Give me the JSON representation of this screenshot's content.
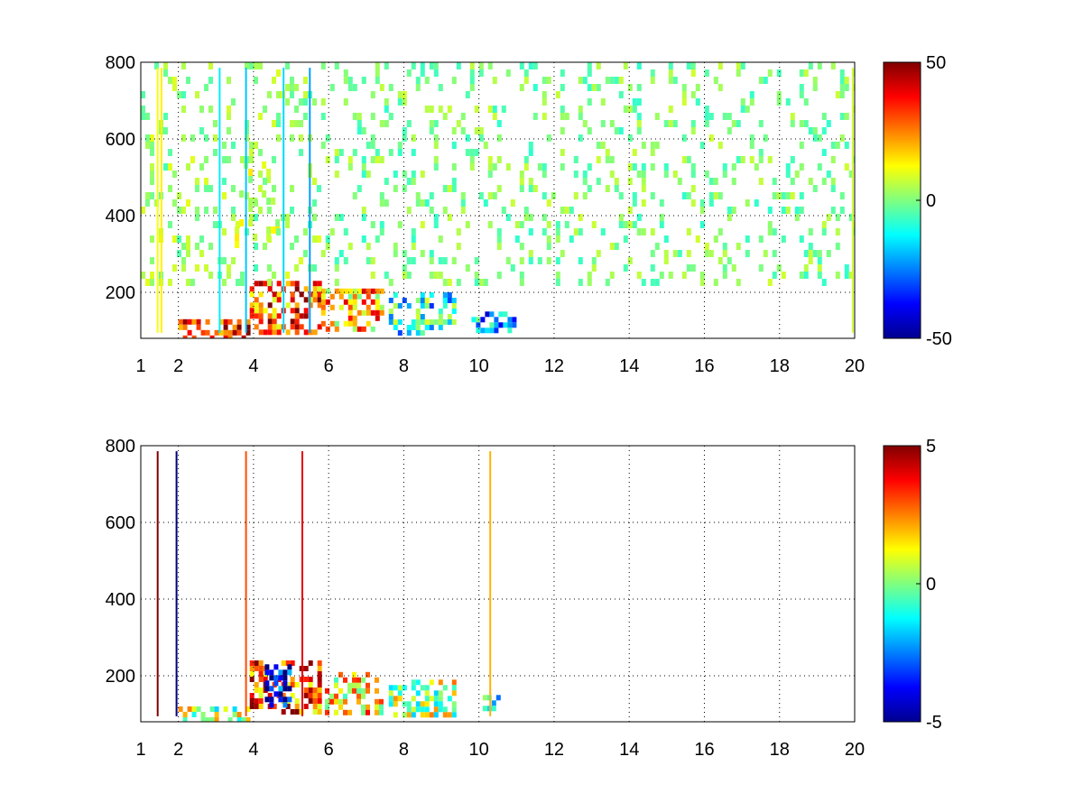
{
  "chart_data": [
    {
      "type": "heatmap",
      "title": "",
      "xlabel": "",
      "ylabel": "",
      "xlim": [
        1,
        20
      ],
      "ylim": [
        80,
        800
      ],
      "x_ticks": [
        {
          "value": 1,
          "label": "1"
        },
        {
          "value": 2,
          "label": "2"
        },
        {
          "value": 4,
          "label": "4"
        },
        {
          "value": 6,
          "label": "6"
        },
        {
          "value": 8,
          "label": "8"
        },
        {
          "value": 10,
          "label": "10"
        },
        {
          "value": 12,
          "label": "12"
        },
        {
          "value": 14,
          "label": "14"
        },
        {
          "value": 16,
          "label": "16"
        },
        {
          "value": 18,
          "label": "18"
        },
        {
          "value": 20,
          "label": "20"
        }
      ],
      "y_ticks": [
        {
          "value": 200,
          "label": "200"
        },
        {
          "value": 400,
          "label": "400"
        },
        {
          "value": 600,
          "label": "600"
        },
        {
          "value": 800,
          "label": "800"
        }
      ],
      "grid": true,
      "grid_style": "dotted",
      "colormap": "jet",
      "clim": [
        -50,
        50
      ],
      "colorbar_ticks": [
        {
          "value": 50,
          "label": "50"
        },
        {
          "value": 0,
          "label": "0"
        },
        {
          "value": -50,
          "label": "-50"
        }
      ],
      "regions": [
        {
          "x": [
            2.0,
            3.9
          ],
          "y": [
            80,
            130
          ],
          "value": 38
        },
        {
          "x": [
            3.9,
            5.8
          ],
          "y": [
            100,
            230
          ],
          "value": 30
        },
        {
          "x": [
            5.8,
            7.4
          ],
          "y": [
            100,
            210
          ],
          "value": 20
        },
        {
          "x": [
            7.6,
            9.4
          ],
          "y": [
            100,
            200
          ],
          "value": -12
        },
        {
          "x": [
            9.8,
            10.9
          ],
          "y": [
            100,
            150
          ],
          "value": -22
        },
        {
          "x": [
            3.5,
            4.7
          ],
          "y": [
            330,
            560
          ],
          "value": 8
        },
        {
          "x": [
            1.0,
            5.8
          ],
          "y": [
            230,
            800
          ],
          "value": 2
        },
        {
          "x": [
            5.8,
            20.0
          ],
          "y": [
            230,
            800
          ],
          "value": 0
        }
      ],
      "lines": [
        {
          "x": 1.45,
          "value": 12
        },
        {
          "x": 1.55,
          "value": 14
        },
        {
          "x": 3.1,
          "value": -14
        },
        {
          "x": 3.8,
          "value": -18
        },
        {
          "x": 4.8,
          "value": -16
        },
        {
          "x": 5.5,
          "value": -22
        },
        {
          "x": 19.95,
          "value": 8
        }
      ]
    },
    {
      "type": "heatmap",
      "title": "",
      "xlabel": "",
      "ylabel": "",
      "xlim": [
        1,
        20
      ],
      "ylim": [
        80,
        800
      ],
      "x_ticks": [
        {
          "value": 1,
          "label": "1"
        },
        {
          "value": 2,
          "label": "2"
        },
        {
          "value": 4,
          "label": "4"
        },
        {
          "value": 6,
          "label": "6"
        },
        {
          "value": 8,
          "label": "8"
        },
        {
          "value": 10,
          "label": "10"
        },
        {
          "value": 12,
          "label": "12"
        },
        {
          "value": 14,
          "label": "14"
        },
        {
          "value": 16,
          "label": "16"
        },
        {
          "value": 18,
          "label": "18"
        },
        {
          "value": 20,
          "label": "20"
        }
      ],
      "y_ticks": [
        {
          "value": 200,
          "label": "200"
        },
        {
          "value": 400,
          "label": "400"
        },
        {
          "value": 600,
          "label": "600"
        },
        {
          "value": 800,
          "label": "800"
        }
      ],
      "grid": true,
      "grid_style": "dotted",
      "colormap": "jet",
      "clim": [
        -5,
        5
      ],
      "colorbar_ticks": [
        {
          "value": 5,
          "label": "5"
        },
        {
          "value": 0,
          "label": "0"
        },
        {
          "value": -5,
          "label": "-5"
        }
      ],
      "regions": [
        {
          "x": [
            2.0,
            3.9
          ],
          "y": [
            80,
            120
          ],
          "value": 0.5
        },
        {
          "x": [
            3.9,
            5.8
          ],
          "y": [
            100,
            240
          ],
          "value": 3
        },
        {
          "x": [
            4.3,
            5.0
          ],
          "y": [
            120,
            230
          ],
          "value": -4
        },
        {
          "x": [
            5.9,
            7.4
          ],
          "y": [
            100,
            210
          ],
          "value": 1.5
        },
        {
          "x": [
            7.6,
            9.3
          ],
          "y": [
            100,
            190
          ],
          "value": 0.5
        },
        {
          "x": [
            10.1,
            10.7
          ],
          "y": [
            120,
            150
          ],
          "value": -1
        }
      ],
      "lines": [
        {
          "x": 1.45,
          "value": 5
        },
        {
          "x": 1.95,
          "value": -5
        },
        {
          "x": 3.8,
          "value": 3
        },
        {
          "x": 10.3,
          "value": 2
        },
        {
          "x": 5.3,
          "value": 4
        }
      ]
    }
  ]
}
